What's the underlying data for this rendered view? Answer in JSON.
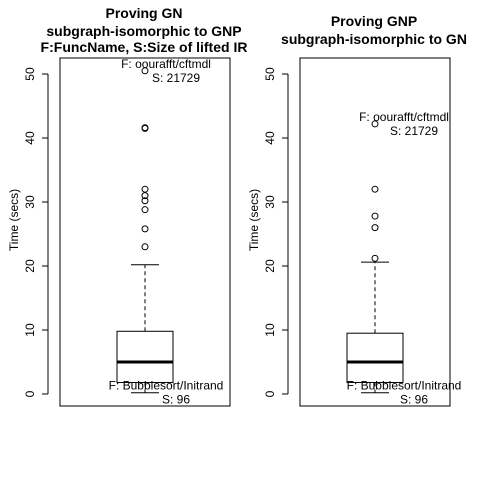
{
  "chart_data": [
    {
      "type": "boxplot",
      "title_lines": [
        "Proving GN",
        "subgraph-isomorphic to GNP",
        "F:FuncName, S:Size of lifted IR"
      ],
      "ylabel": "Time (secs)",
      "yticks": [
        0,
        10,
        20,
        30,
        40,
        50
      ],
      "ylim": [
        -2,
        53
      ],
      "box": {
        "lower_whisker": 0.2,
        "q1": 1.8,
        "median": 5.0,
        "q3": 9.8,
        "upper_whisker": 20.2
      },
      "outliers": [
        23.0,
        25.8,
        28.8,
        30.2,
        31.0,
        32.0,
        41.5,
        41.6,
        50.5
      ],
      "annotations": [
        {
          "lines": [
            "F:  oourafft/cftmdl",
            "S:  21729"
          ],
          "y": 50.5
        },
        {
          "lines": [
            "F:  Bubblesort/Initrand",
            "S:  96"
          ],
          "y": 0.2
        }
      ]
    },
    {
      "type": "boxplot",
      "title_lines": [
        "Proving GNP",
        "subgraph-isomorphic to GN"
      ],
      "ylabel": "Time (secs)",
      "yticks": [
        0,
        10,
        20,
        30,
        40,
        50
      ],
      "ylim": [
        -2,
        53
      ],
      "box": {
        "lower_whisker": 0.2,
        "q1": 1.8,
        "median": 5.0,
        "q3": 9.5,
        "upper_whisker": 20.6
      },
      "outliers": [
        21.2,
        26.0,
        27.8,
        32.0,
        42.2
      ],
      "annotations": [
        {
          "lines": [
            "F:  oourafft/cftmdl",
            "S:  21729"
          ],
          "y": 42.2
        },
        {
          "lines": [
            "F:  Bubblesort/Initrand",
            "S:  96"
          ],
          "y": 0.2
        }
      ]
    }
  ]
}
